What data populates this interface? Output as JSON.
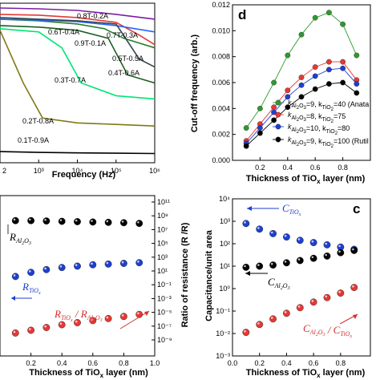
{
  "chart_data": [
    {
      "panel": "top-left",
      "type": "line",
      "xlabel": "Frequency (Hz)",
      "ylabel": "",
      "x_ticks": [
        "2",
        "10³",
        "10⁴",
        "10⁵",
        "10⁶"
      ],
      "series": [
        {
          "name": "0.8T-0.2A",
          "color": "#7b1fa2",
          "x": [
            2.0,
            3,
            4,
            5,
            6
          ],
          "y": [
            0.97,
            0.965,
            0.955,
            0.93,
            0.9
          ]
        },
        {
          "name": "0.7T-0.3A",
          "color": "#e53935",
          "x": [
            2.0,
            3,
            4,
            5,
            5.6,
            6
          ],
          "y": [
            0.93,
            0.925,
            0.91,
            0.88,
            0.8,
            0.74
          ]
        },
        {
          "name": "0.6T-0.4A",
          "color": "#2e7d32",
          "x": [
            2.0,
            3,
            4,
            4.7,
            5.2,
            6
          ],
          "y": [
            0.9,
            0.89,
            0.87,
            0.84,
            0.78,
            0.72
          ]
        },
        {
          "name": "0.9T-0.1A",
          "color": "#2962ff",
          "x": [
            2.0,
            3,
            4,
            5,
            6
          ],
          "y": [
            0.9,
            0.895,
            0.885,
            0.86,
            0.82
          ]
        },
        {
          "name": "0.5T-0.5A",
          "color": "#37474f",
          "x": [
            2.0,
            3,
            4,
            5,
            5.6,
            6
          ],
          "y": [
            0.91,
            0.9,
            0.89,
            0.87,
            0.65,
            0.6
          ]
        },
        {
          "name": "0.4T-0.6A",
          "color": "#1b5e20",
          "x": [
            2.0,
            3,
            4,
            4.8,
            5.3,
            6
          ],
          "y": [
            0.86,
            0.85,
            0.83,
            0.78,
            0.55,
            0.5
          ]
        },
        {
          "name": "0.3T-0.7A",
          "color": "#00e676",
          "x": [
            2.0,
            3,
            3.6,
            4.1,
            5,
            6
          ],
          "y": [
            0.84,
            0.82,
            0.72,
            0.5,
            0.42,
            0.4
          ]
        },
        {
          "name": "0.2T-0.8A",
          "color": "#827717",
          "x": [
            2.0,
            2.6,
            3.1,
            4,
            5,
            6
          ],
          "y": [
            0.83,
            0.5,
            0.28,
            0.25,
            0.24,
            0.23
          ]
        },
        {
          "name": "0.1T-0.9A",
          "color": "#000000",
          "x": [
            2.0,
            3,
            4,
            5,
            6
          ],
          "y": [
            0.07,
            0.065,
            0.062,
            0.06,
            0.058
          ]
        }
      ]
    },
    {
      "panel": "(d)",
      "type": "scatter",
      "label": "d",
      "xlabel": "Thickness of TiOx layer (nm)",
      "ylabel": "Cut-off frequency (arb.)",
      "xlim": [
        0.0,
        1.0
      ],
      "ylim": [
        0.0,
        0.012
      ],
      "x_ticks": [
        "0.2",
        "0.4",
        "0.6",
        "0.8"
      ],
      "y_ticks": [
        "0.000",
        "0.002",
        "0.004",
        "0.006",
        "0.008",
        "0.010",
        "0.012"
      ],
      "x": [
        0.1,
        0.2,
        0.3,
        0.4,
        0.5,
        0.6,
        0.7,
        0.8,
        0.9
      ],
      "series": [
        {
          "color": "#2e9a2e",
          "y": [
            0.0025,
            0.004,
            0.006,
            0.0081,
            0.0097,
            0.011,
            0.0114,
            0.0105,
            0.0081
          ]
        },
        {
          "color": "#e53935",
          "y": [
            0.0015,
            0.0028,
            0.0041,
            0.0054,
            0.0064,
            0.0072,
            0.0076,
            0.0076,
            0.0062
          ]
        },
        {
          "color": "#1e40d0",
          "y": [
            0.0013,
            0.0025,
            0.0037,
            0.0049,
            0.0058,
            0.0065,
            0.007,
            0.0071,
            0.0059
          ]
        },
        {
          "color": "#000000",
          "y": [
            0.0011,
            0.0021,
            0.0031,
            0.0041,
            0.0049,
            0.0055,
            0.0059,
            0.006,
            0.0052
          ]
        }
      ],
      "legend": [
        {
          "k1": "=9, k",
          "k2": "=40 (Anata"
        },
        {
          "k1": "=8, k",
          "k2": "=75"
        },
        {
          "k1": "=10, k",
          "k2": "=80"
        },
        {
          "k1": "=9, k",
          "k2": "=100 (Rutil"
        }
      ]
    },
    {
      "panel": "bottom-left",
      "type": "scatter",
      "xlabel": "Thickness of TiOx layer (nm)",
      "ylabel": "Ratio of resistance (R_TiOx /R_Al2O3)",
      "xlim": [
        0.0,
        1.0
      ],
      "x_ticks": [
        "0.2",
        "0.4",
        "0.6",
        "0.8",
        "1.0"
      ],
      "right_y_ticks": [
        "10¹¹",
        "10⁹",
        "10⁷",
        "10⁵",
        "10³",
        "10¹",
        "10⁻¹",
        "10⁻³",
        "10⁻⁵",
        "10⁻⁷",
        "10⁻⁹"
      ],
      "x": [
        0.1,
        0.2,
        0.3,
        0.4,
        0.5,
        0.6,
        0.7,
        0.8,
        0.9
      ],
      "series": [
        {
          "name": "R_Al2O3",
          "color": "#000000",
          "y_log": [
            8.3,
            8.3,
            8.25,
            8.2,
            8.15,
            8.1,
            8.05,
            8.0,
            7.9
          ]
        },
        {
          "name": "R_TiOx",
          "color": "#1e40d0",
          "y_log": [
            0.2,
            0.8,
            1.2,
            1.5,
            1.7,
            1.9,
            2.0,
            2.1,
            2.2
          ]
        },
        {
          "name": "R_TiOx / R_Al2O3",
          "color": "#e53935",
          "y_log": [
            -8.0,
            -7.6,
            -7.2,
            -6.8,
            -6.5,
            -6.2,
            -5.9,
            -5.6,
            -5.3
          ]
        }
      ]
    },
    {
      "panel": "(c)",
      "type": "scatter",
      "label": "c",
      "xlabel": "Thickness of TiOx layer (nm)",
      "ylabel": "Capacitance/unit area",
      "xlim": [
        0.0,
        1.0
      ],
      "x_ticks": [
        "0.0",
        "0.2",
        "0.4",
        "0.6",
        "0.8"
      ],
      "y_ticks": [
        "10⁴",
        "10³",
        "10²",
        "10¹",
        "10⁰",
        "10⁻¹",
        "10⁻²",
        "10⁻³"
      ],
      "x": [
        0.1,
        0.2,
        0.3,
        0.4,
        0.5,
        0.6,
        0.7,
        0.8,
        0.9
      ],
      "series": [
        {
          "name": "C_TiOx",
          "color": "#1e40d0",
          "y_log": [
            2.9,
            2.65,
            2.45,
            2.3,
            2.15,
            2.05,
            1.95,
            1.85,
            1.75
          ]
        },
        {
          "name": "C_Al2O3",
          "color": "#000000",
          "y_log": [
            0.95,
            1.0,
            1.05,
            1.15,
            1.25,
            1.35,
            1.45,
            1.6,
            1.7
          ]
        },
        {
          "name": "C_Al2O3 / C_TiOx",
          "color": "#e53935",
          "y_log": [
            -1.95,
            -1.6,
            -1.35,
            -1.1,
            -0.85,
            -0.6,
            -0.4,
            -0.2,
            0.05
          ]
        }
      ]
    }
  ]
}
